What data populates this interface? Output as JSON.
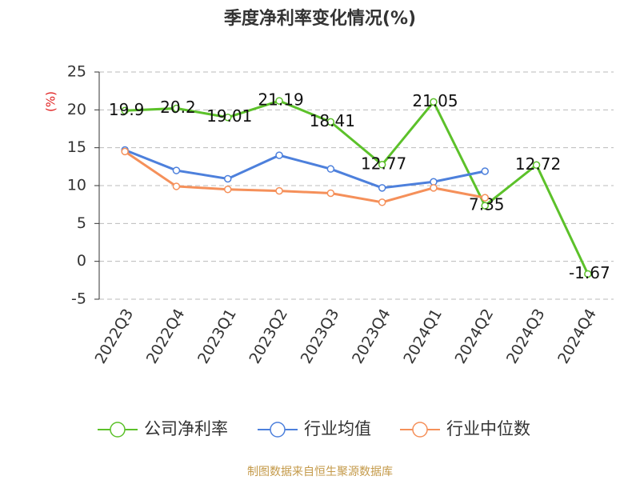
{
  "chart_data": {
    "type": "line",
    "title": "季度净利率变化情况(%)",
    "y_label": "(%)",
    "source": "制图数据来自恒生聚源数据库",
    "categories": [
      "2022Q3",
      "2022Q4",
      "2023Q1",
      "2023Q2",
      "2023Q3",
      "2023Q4",
      "2024Q1",
      "2024Q2",
      "2024Q3",
      "2024Q4"
    ],
    "series": [
      {
        "name": "公司净利率",
        "color": "#5cc12a",
        "values": [
          19.9,
          20.2,
          19.01,
          21.19,
          18.41,
          12.77,
          21.05,
          7.35,
          12.72,
          -1.67
        ],
        "data_labels": true
      },
      {
        "name": "行业均值",
        "color": "#4d80dc",
        "values": [
          14.7,
          12.0,
          10.9,
          14.0,
          12.2,
          9.7,
          10.5,
          11.9,
          null,
          null
        ]
      },
      {
        "name": "行业中位数",
        "color": "#f5905a",
        "values": [
          14.5,
          9.9,
          9.5,
          9.3,
          9.0,
          7.8,
          9.7,
          8.4,
          null,
          null
        ]
      }
    ],
    "ylim": [
      -5,
      25
    ],
    "yticks": [
      -5,
      0,
      5,
      10,
      15,
      20,
      25
    ],
    "grid": true
  }
}
